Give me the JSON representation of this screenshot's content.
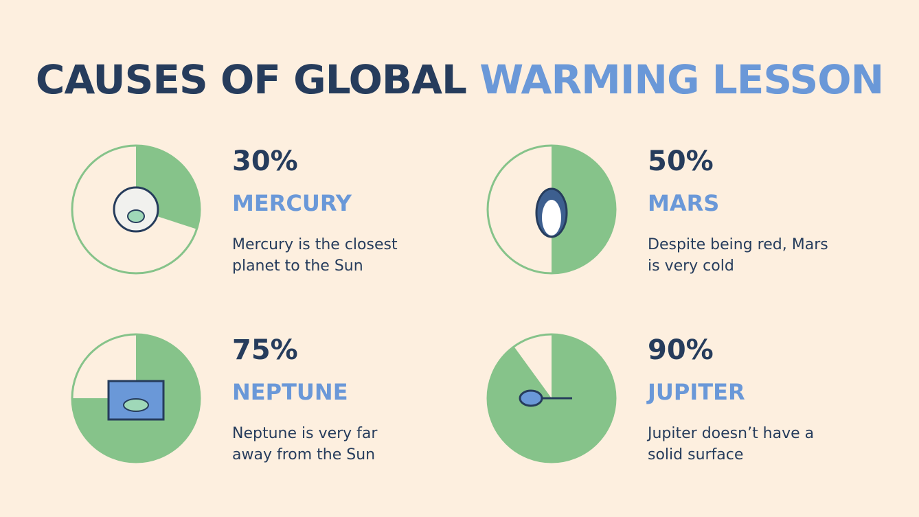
{
  "title": {
    "dark": "CAUSES OF GLOBAL",
    "accent": "WARMING LESSON"
  },
  "items": [
    {
      "value": 30,
      "value_label": "30%",
      "name": "MERCURY",
      "text": "Mercury is the closest planet to the Sun"
    },
    {
      "value": 50,
      "value_label": "50%",
      "name": "MARS",
      "text": "Despite being red, Mars is very cold"
    },
    {
      "value": 75,
      "value_label": "75%",
      "name": "NEPTUNE",
      "text": "Neptune is very far away from the Sun"
    },
    {
      "value": 90,
      "value_label": "90%",
      "name": "JUPITER",
      "text": "Jupiter doesn’t have a solid surface"
    }
  ]
}
